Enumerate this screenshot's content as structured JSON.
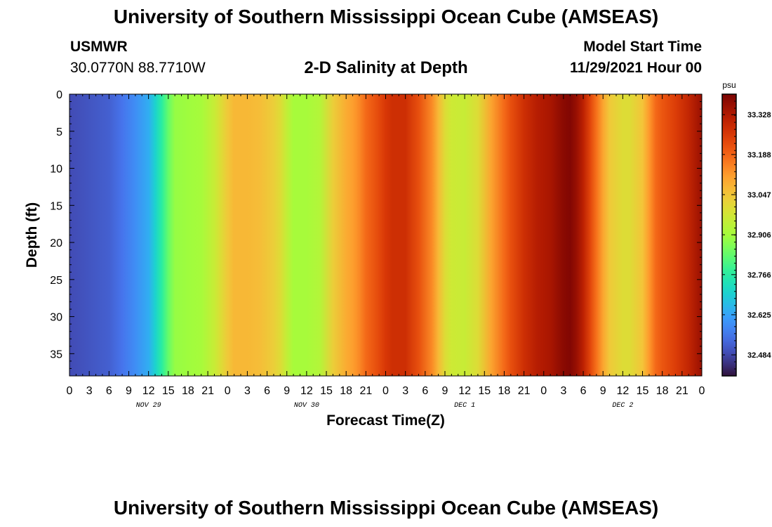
{
  "header": {
    "title": "University of Southern Mississippi Ocean Cube (AMSEAS)",
    "station": "USMWR",
    "coords": "30.0770N  88.7710W",
    "subtitle": "2-D Salinity at Depth",
    "model_start_label": "Model Start Time",
    "model_start_value": "11/29/2021 Hour 00"
  },
  "footer": {
    "title": "University of Southern Mississippi Ocean Cube (AMSEAS)"
  },
  "chart_data": {
    "type": "heatmap",
    "title": "2-D Salinity at Depth",
    "xlabel": "Forecast Time(Z)",
    "ylabel": "Depth (ft)",
    "x_hours_range": [
      0,
      96
    ],
    "x_tick_step_hours": 3,
    "x_tick_labels": [
      "0",
      "3",
      "6",
      "9",
      "12",
      "15",
      "18",
      "21",
      "0",
      "3",
      "6",
      "9",
      "12",
      "15",
      "18",
      "21",
      "0",
      "3",
      "6",
      "9",
      "12",
      "15",
      "18",
      "21",
      "0",
      "3",
      "6",
      "9",
      "12",
      "15",
      "18",
      "21",
      "0"
    ],
    "day_labels": [
      {
        "label": "NOV 29",
        "hour": 12
      },
      {
        "label": "NOV 30",
        "hour": 36
      },
      {
        "label": "DEC 1",
        "hour": 60
      },
      {
        "label": "DEC 2",
        "hour": 84
      }
    ],
    "y_range": [
      0,
      38
    ],
    "y_ticks": [
      0,
      5,
      10,
      15,
      20,
      25,
      30,
      35
    ],
    "colorbar": {
      "unit": "psu",
      "range": [
        32.41,
        33.4
      ],
      "tick_values": [
        33.328,
        33.188,
        33.047,
        32.906,
        32.766,
        32.625,
        32.484
      ],
      "tick_labels": [
        "33.328",
        "33.188",
        "33.047",
        "32.906",
        "32.766",
        "32.625",
        "32.484"
      ]
    },
    "salinity_by_hour": {
      "hours": [
        0,
        2,
        4,
        6,
        8,
        10,
        12,
        13,
        14,
        15,
        16,
        18,
        20,
        22,
        23,
        24,
        25,
        27,
        29,
        31,
        32,
        33,
        34,
        36,
        38,
        40,
        42,
        43,
        44,
        45,
        47,
        48,
        49,
        51,
        53,
        55,
        56,
        57,
        58,
        60,
        62,
        64,
        66,
        67,
        69,
        71,
        72,
        73,
        74,
        75,
        76,
        77,
        78,
        79,
        80,
        81,
        82,
        84,
        85,
        87,
        88,
        89,
        90,
        92,
        94,
        96
      ],
      "values": [
        32.49,
        32.5,
        32.51,
        32.52,
        32.55,
        32.59,
        32.64,
        32.7,
        32.77,
        32.84,
        32.89,
        32.9,
        32.91,
        32.96,
        33.0,
        33.04,
        33.07,
        33.07,
        33.06,
        33.03,
        33.0,
        32.95,
        32.91,
        32.91,
        32.93,
        33.03,
        33.09,
        33.11,
        33.14,
        33.18,
        33.23,
        33.26,
        33.28,
        33.28,
        33.22,
        33.14,
        33.07,
        33.0,
        32.97,
        32.96,
        33.0,
        33.1,
        33.18,
        33.22,
        33.28,
        33.32,
        33.33,
        33.34,
        33.36,
        33.38,
        33.39,
        33.36,
        33.31,
        33.24,
        33.17,
        33.1,
        33.04,
        33.0,
        33.0,
        33.05,
        33.12,
        33.18,
        33.21,
        33.25,
        33.3,
        33.36
      ]
    },
    "colormap": [
      "#30123b",
      "#4145ab",
      "#4675ed",
      "#39a2fc",
      "#1bcfd4",
      "#24eca6",
      "#61fc6c",
      "#a4fc3b",
      "#d1e834",
      "#f3c63a",
      "#fe9b2d",
      "#f36315",
      "#d93806",
      "#b11901",
      "#7a0403"
    ]
  }
}
